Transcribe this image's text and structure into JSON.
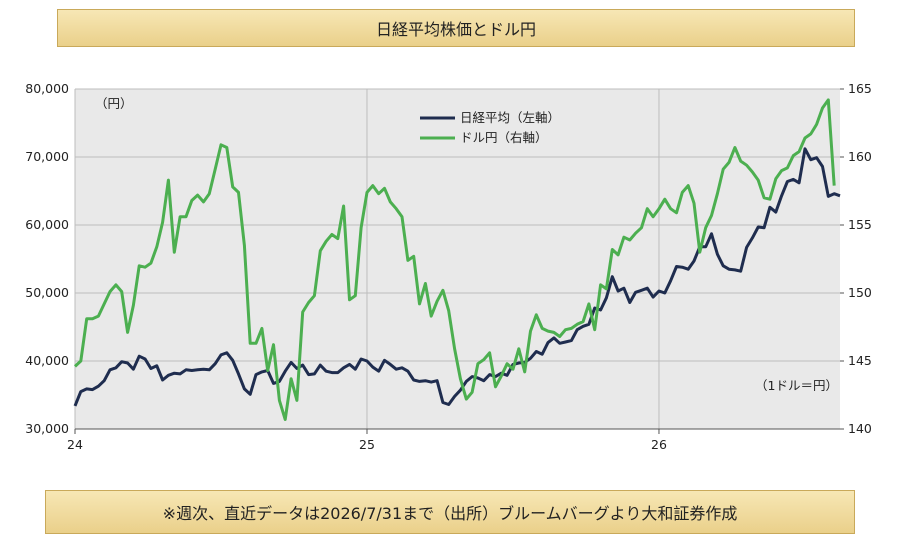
{
  "title": "日経平均株価とドル円",
  "source_note": "※週次、直近データは2026/7/31まで（出所）ブルームバーグより大和証券作成",
  "chart_data": {
    "type": "line",
    "title": "日経平均株価とドル円",
    "left_axis": {
      "unit_label": "（円）",
      "ylim": [
        30000,
        80000
      ],
      "ticks": [
        "30,000",
        "40,000",
        "50,000",
        "60,000",
        "70,000",
        "80,000"
      ]
    },
    "right_axis": {
      "unit_label": "（1ドル＝円）",
      "ylim": [
        140,
        165
      ],
      "ticks": [
        "140",
        "145",
        "150",
        "155",
        "160",
        "165"
      ]
    },
    "x_axis": {
      "ticks": [
        {
          "label": "24",
          "value": 2024
        },
        {
          "label": "25",
          "value": 2025
        },
        {
          "label": "26",
          "value": 2026
        }
      ],
      "xlim": [
        2024.0,
        2026.62
      ]
    },
    "grid": true,
    "legend_position": "top-center",
    "series": [
      {
        "name": "日経平均（左軸）",
        "axis": "left",
        "color": "#1f2d4f",
        "points": [
          [
            2024.0,
            33400
          ],
          [
            2024.02,
            35500
          ],
          [
            2024.04,
            35900
          ],
          [
            2024.06,
            35800
          ],
          [
            2024.08,
            36300
          ],
          [
            2024.1,
            37100
          ],
          [
            2024.12,
            38700
          ],
          [
            2024.14,
            39000
          ],
          [
            2024.16,
            39900
          ],
          [
            2024.18,
            39700
          ],
          [
            2024.2,
            38800
          ],
          [
            2024.22,
            40700
          ],
          [
            2024.24,
            40300
          ],
          [
            2024.26,
            38900
          ],
          [
            2024.28,
            39300
          ],
          [
            2024.3,
            37200
          ],
          [
            2024.32,
            37900
          ],
          [
            2024.34,
            38200
          ],
          [
            2024.36,
            38100
          ],
          [
            2024.38,
            38700
          ],
          [
            2024.4,
            38600
          ],
          [
            2024.42,
            38700
          ],
          [
            2024.44,
            38800
          ],
          [
            2024.46,
            38700
          ],
          [
            2024.48,
            39600
          ],
          [
            2024.5,
            40900
          ],
          [
            2024.52,
            41200
          ],
          [
            2024.54,
            40100
          ],
          [
            2024.56,
            38100
          ],
          [
            2024.58,
            35900
          ],
          [
            2024.6,
            35100
          ],
          [
            2024.62,
            38000
          ],
          [
            2024.64,
            38400
          ],
          [
            2024.66,
            38600
          ],
          [
            2024.68,
            36700
          ],
          [
            2024.7,
            37000
          ],
          [
            2024.72,
            38500
          ],
          [
            2024.74,
            39800
          ],
          [
            2024.76,
            38900
          ],
          [
            2024.78,
            39400
          ],
          [
            2024.8,
            38000
          ],
          [
            2024.82,
            38100
          ],
          [
            2024.84,
            39400
          ],
          [
            2024.86,
            38500
          ],
          [
            2024.88,
            38300
          ],
          [
            2024.9,
            38300
          ],
          [
            2024.92,
            39000
          ],
          [
            2024.94,
            39500
          ],
          [
            2024.96,
            38800
          ],
          [
            2024.98,
            40300
          ],
          [
            2025.0,
            40000
          ],
          [
            2025.02,
            39100
          ],
          [
            2025.04,
            38500
          ],
          [
            2025.06,
            40100
          ],
          [
            2025.08,
            39500
          ],
          [
            2025.1,
            38800
          ],
          [
            2025.12,
            39000
          ],
          [
            2025.14,
            38500
          ],
          [
            2025.16,
            37200
          ],
          [
            2025.18,
            37000
          ],
          [
            2025.2,
            37100
          ],
          [
            2025.22,
            36900
          ],
          [
            2025.24,
            37100
          ],
          [
            2025.26,
            33900
          ],
          [
            2025.28,
            33600
          ],
          [
            2025.3,
            34800
          ],
          [
            2025.32,
            35700
          ],
          [
            2025.34,
            37000
          ],
          [
            2025.36,
            37700
          ],
          [
            2025.38,
            37500
          ],
          [
            2025.4,
            37100
          ],
          [
            2025.42,
            38000
          ],
          [
            2025.44,
            37700
          ],
          [
            2025.46,
            38200
          ],
          [
            2025.48,
            37900
          ],
          [
            2025.5,
            39500
          ],
          [
            2025.52,
            39700
          ],
          [
            2025.54,
            39800
          ],
          [
            2025.56,
            40400
          ],
          [
            2025.58,
            41400
          ],
          [
            2025.6,
            41000
          ],
          [
            2025.62,
            42700
          ],
          [
            2025.64,
            43400
          ],
          [
            2025.66,
            42600
          ],
          [
            2025.68,
            42800
          ],
          [
            2025.7,
            43000
          ],
          [
            2025.72,
            44600
          ],
          [
            2025.74,
            45100
          ],
          [
            2025.76,
            45400
          ],
          [
            2025.78,
            47800
          ],
          [
            2025.8,
            47500
          ],
          [
            2025.82,
            49300
          ],
          [
            2025.84,
            52400
          ],
          [
            2025.86,
            50300
          ],
          [
            2025.88,
            50700
          ],
          [
            2025.9,
            48600
          ],
          [
            2025.92,
            50100
          ],
          [
            2025.94,
            50400
          ],
          [
            2025.96,
            50700
          ],
          [
            2025.98,
            49400
          ],
          [
            2026.0,
            50300
          ],
          [
            2026.02,
            50000
          ],
          [
            2026.04,
            51800
          ],
          [
            2026.06,
            53900
          ],
          [
            2026.08,
            53800
          ],
          [
            2026.1,
            53500
          ],
          [
            2026.12,
            54700
          ],
          [
            2026.14,
            56800
          ],
          [
            2026.16,
            56800
          ],
          [
            2026.18,
            58700
          ],
          [
            2026.2,
            55700
          ],
          [
            2026.22,
            54000
          ],
          [
            2026.24,
            53500
          ],
          [
            2026.26,
            53400
          ],
          [
            2026.28,
            53200
          ],
          [
            2026.3,
            56700
          ],
          [
            2026.32,
            58100
          ],
          [
            2026.34,
            59700
          ],
          [
            2026.36,
            59600
          ],
          [
            2026.38,
            62600
          ],
          [
            2026.4,
            61900
          ],
          [
            2026.42,
            64300
          ],
          [
            2026.44,
            66400
          ],
          [
            2026.46,
            66700
          ],
          [
            2026.48,
            66200
          ],
          [
            2026.5,
            71200
          ],
          [
            2026.52,
            69600
          ],
          [
            2026.54,
            69900
          ],
          [
            2026.56,
            68600
          ],
          [
            2026.58,
            64200
          ],
          [
            2026.6,
            64600
          ],
          [
            2026.62,
            64300
          ]
        ]
      },
      {
        "name": "ドル円（右軸）",
        "axis": "right",
        "color": "#4caf50",
        "points": [
          [
            2024.0,
            144.6
          ],
          [
            2024.02,
            145.0
          ],
          [
            2024.04,
            148.1
          ],
          [
            2024.06,
            148.1
          ],
          [
            2024.08,
            148.3
          ],
          [
            2024.1,
            149.2
          ],
          [
            2024.12,
            150.1
          ],
          [
            2024.14,
            150.6
          ],
          [
            2024.16,
            150.1
          ],
          [
            2024.18,
            147.1
          ],
          [
            2024.2,
            149.1
          ],
          [
            2024.22,
            152.0
          ],
          [
            2024.24,
            151.9
          ],
          [
            2024.26,
            152.2
          ],
          [
            2024.28,
            153.4
          ],
          [
            2024.3,
            155.2
          ],
          [
            2024.32,
            158.3
          ],
          [
            2024.34,
            153.0
          ],
          [
            2024.36,
            155.6
          ],
          [
            2024.38,
            155.6
          ],
          [
            2024.4,
            156.8
          ],
          [
            2024.42,
            157.2
          ],
          [
            2024.44,
            156.7
          ],
          [
            2024.46,
            157.3
          ],
          [
            2024.48,
            159.1
          ],
          [
            2024.5,
            160.9
          ],
          [
            2024.52,
            160.7
          ],
          [
            2024.54,
            157.8
          ],
          [
            2024.56,
            157.4
          ],
          [
            2024.58,
            153.5
          ],
          [
            2024.6,
            146.3
          ],
          [
            2024.62,
            146.3
          ],
          [
            2024.64,
            147.4
          ],
          [
            2024.66,
            144.3
          ],
          [
            2024.68,
            146.2
          ],
          [
            2024.7,
            142.1
          ],
          [
            2024.72,
            140.7
          ],
          [
            2024.74,
            143.7
          ],
          [
            2024.76,
            142.1
          ],
          [
            2024.78,
            148.6
          ],
          [
            2024.8,
            149.3
          ],
          [
            2024.82,
            149.8
          ],
          [
            2024.84,
            153.1
          ],
          [
            2024.86,
            153.8
          ],
          [
            2024.88,
            154.3
          ],
          [
            2024.9,
            154.0
          ],
          [
            2024.92,
            156.4
          ],
          [
            2024.94,
            149.5
          ],
          [
            2024.96,
            149.8
          ],
          [
            2024.98,
            154.8
          ],
          [
            2025.0,
            157.4
          ],
          [
            2025.02,
            157.9
          ],
          [
            2025.04,
            157.3
          ],
          [
            2025.06,
            157.7
          ],
          [
            2025.08,
            156.7
          ],
          [
            2025.1,
            156.2
          ],
          [
            2025.12,
            155.6
          ],
          [
            2025.14,
            152.4
          ],
          [
            2025.16,
            152.7
          ],
          [
            2025.18,
            149.2
          ],
          [
            2025.2,
            150.7
          ],
          [
            2025.22,
            148.3
          ],
          [
            2025.24,
            149.4
          ],
          [
            2025.26,
            150.2
          ],
          [
            2025.28,
            148.7
          ],
          [
            2025.3,
            145.9
          ],
          [
            2025.32,
            143.7
          ],
          [
            2025.34,
            142.2
          ],
          [
            2025.36,
            142.7
          ],
          [
            2025.38,
            144.8
          ],
          [
            2025.4,
            145.1
          ],
          [
            2025.42,
            145.6
          ],
          [
            2025.44,
            143.1
          ],
          [
            2025.46,
            143.9
          ],
          [
            2025.48,
            144.8
          ],
          [
            2025.5,
            144.4
          ],
          [
            2025.52,
            145.9
          ],
          [
            2025.54,
            144.2
          ],
          [
            2025.56,
            147.2
          ],
          [
            2025.58,
            148.4
          ],
          [
            2025.6,
            147.4
          ],
          [
            2025.62,
            147.2
          ],
          [
            2025.64,
            147.1
          ],
          [
            2025.66,
            146.8
          ],
          [
            2025.68,
            147.3
          ],
          [
            2025.7,
            147.4
          ],
          [
            2025.72,
            147.7
          ],
          [
            2025.74,
            147.9
          ],
          [
            2025.76,
            149.2
          ],
          [
            2025.78,
            147.3
          ],
          [
            2025.8,
            150.6
          ],
          [
            2025.82,
            150.3
          ],
          [
            2025.84,
            153.2
          ],
          [
            2025.86,
            152.8
          ],
          [
            2025.88,
            154.1
          ],
          [
            2025.9,
            153.9
          ],
          [
            2025.92,
            154.4
          ],
          [
            2025.94,
            154.8
          ],
          [
            2025.96,
            156.2
          ],
          [
            2025.98,
            155.6
          ],
          [
            2026.0,
            156.2
          ],
          [
            2026.02,
            156.9
          ],
          [
            2026.04,
            156.2
          ],
          [
            2026.06,
            155.9
          ],
          [
            2026.08,
            157.4
          ],
          [
            2026.1,
            157.9
          ],
          [
            2026.12,
            156.6
          ],
          [
            2026.14,
            153.0
          ],
          [
            2026.16,
            154.8
          ],
          [
            2026.18,
            155.7
          ],
          [
            2026.2,
            157.3
          ],
          [
            2026.22,
            159.1
          ],
          [
            2026.24,
            159.6
          ],
          [
            2026.26,
            160.7
          ],
          [
            2026.28,
            159.7
          ],
          [
            2026.3,
            159.4
          ],
          [
            2026.32,
            158.9
          ],
          [
            2026.34,
            158.3
          ],
          [
            2026.36,
            157.0
          ],
          [
            2026.38,
            156.9
          ],
          [
            2026.4,
            158.4
          ],
          [
            2026.42,
            159.0
          ],
          [
            2026.44,
            159.2
          ],
          [
            2026.46,
            160.1
          ],
          [
            2026.48,
            160.4
          ],
          [
            2026.5,
            161.4
          ],
          [
            2026.52,
            161.7
          ],
          [
            2026.54,
            162.4
          ],
          [
            2026.56,
            163.6
          ],
          [
            2026.58,
            164.2
          ],
          [
            2026.6,
            157.9
          ]
        ]
      }
    ]
  }
}
